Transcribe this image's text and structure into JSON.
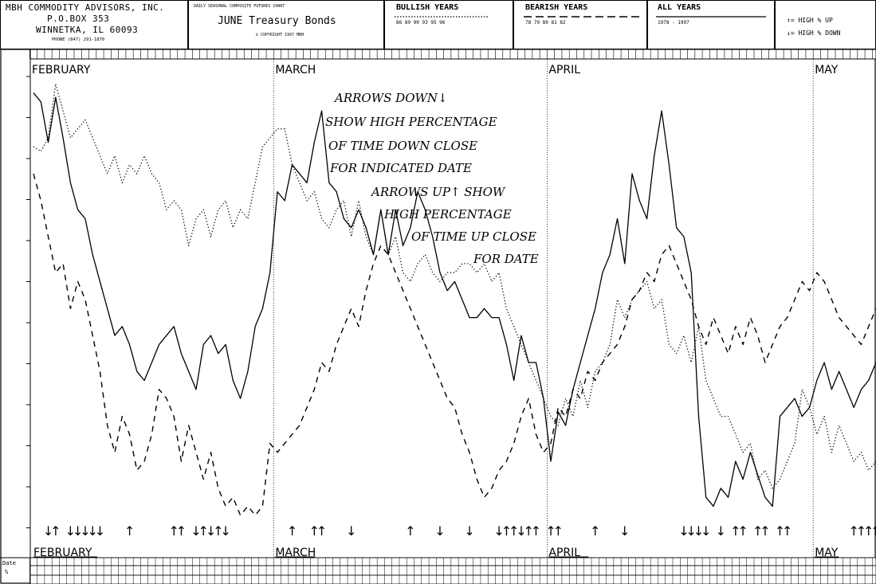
{
  "header": {
    "firm_name": "MBH COMMODITY ADVISORS, INC.",
    "address_line1": "P.O.BOX 353",
    "address_line2": "WINNETKA, IL 60093",
    "phone": "PHONE (847) 291-1870",
    "chart_kind": "DAILY SEASONAL COMPOSITE FUTURES CHART",
    "contract": "JUNE Treasury Bonds",
    "copyright": "© COPYRIGHT 1997 MBH",
    "legend_bullish": {
      "title": "BULLISH YEARS",
      "years": "86 89 90 93 95 96"
    },
    "legend_bearish": {
      "title": "BEARISH YEARS",
      "years": "78 79 80 81 82"
    },
    "legend_all": {
      "title": "ALL YEARS",
      "years": "1978 - 1997"
    },
    "legend_arrows": {
      "up": "↑= HIGH % UP",
      "down": "↓= HIGH % DOWN"
    }
  },
  "annotation": [
    "ARROWS DOWN↓",
    "SHOW HIGH PERCENTAGE",
    "OF TIME DOWN CLOSE",
    "FOR INDICATED DATE",
    "ARROWS UP↑ SHOW",
    "HIGH PERCENTAGE",
    "OF TIME UP CLOSE",
    "FOR DATE"
  ],
  "footer": {
    "date_label": "Date",
    "pct_label": "%"
  },
  "chart_data": {
    "type": "line",
    "title": "JUNE Treasury Bonds",
    "months": [
      "FEBRUARY",
      "MARCH",
      "APRIL",
      "MAY"
    ],
    "month_start_index": [
      0,
      33,
      70,
      106
    ],
    "grid": false,
    "series": [
      {
        "name": "ALL YEARS",
        "style": "solid",
        "values": [
          96,
          94,
          85,
          95,
          86,
          76,
          70,
          68,
          60,
          54,
          48,
          42,
          44,
          40,
          34,
          32,
          36,
          40,
          42,
          44,
          38,
          34,
          30,
          40,
          42,
          38,
          40,
          32,
          28,
          34,
          44,
          48,
          56,
          74,
          72,
          80,
          78,
          76,
          85,
          92,
          76,
          74,
          68,
          66,
          70,
          66,
          60,
          70,
          60,
          70,
          62,
          66,
          74,
          70,
          64,
          56,
          52,
          54,
          50,
          46,
          46,
          48,
          46,
          46,
          40,
          32,
          42,
          36,
          36,
          28,
          14,
          25,
          22,
          30,
          36,
          42,
          48,
          56,
          60,
          68,
          58,
          78,
          72,
          68,
          82,
          92,
          80,
          66,
          64,
          56,
          24,
          6,
          4,
          8,
          6,
          14,
          10,
          16,
          11,
          6,
          4,
          24,
          26,
          28,
          24,
          26,
          32,
          36,
          30,
          34,
          30,
          26,
          30,
          32,
          36
        ]
      },
      {
        "name": "BULLISH YEARS",
        "style": "dotted",
        "values": [
          84,
          83,
          86,
          98,
          92,
          86,
          88,
          90,
          86,
          82,
          78,
          82,
          76,
          80,
          78,
          82,
          78,
          76,
          70,
          72,
          70,
          62,
          68,
          70,
          64,
          70,
          72,
          66,
          70,
          68,
          76,
          84,
          86,
          88,
          88,
          80,
          76,
          72,
          74,
          68,
          66,
          70,
          72,
          64,
          72,
          64,
          60,
          70,
          60,
          64,
          56,
          54,
          58,
          60,
          56,
          54,
          56,
          56,
          58,
          58,
          56,
          58,
          54,
          56,
          48,
          44,
          40,
          36,
          32,
          28,
          24,
          22,
          28,
          24,
          32,
          26,
          34,
          36,
          40,
          50,
          46,
          50,
          52,
          54,
          48,
          50,
          40,
          38,
          42,
          36,
          44,
          32,
          28,
          24,
          24,
          20,
          16,
          18,
          10,
          12,
          8,
          10,
          14,
          18,
          30,
          26,
          20,
          24,
          16,
          22,
          18,
          14,
          16,
          12,
          14
        ]
      },
      {
        "name": "BEARISH YEARS",
        "style": "dashed",
        "values": [
          78,
          72,
          64,
          56,
          58,
          48,
          54,
          50,
          42,
          34,
          22,
          16,
          24,
          20,
          12,
          14,
          20,
          30,
          28,
          24,
          14,
          22,
          16,
          10,
          16,
          8,
          4,
          6,
          2,
          4,
          2,
          4,
          18,
          16,
          18,
          20,
          22,
          26,
          30,
          36,
          34,
          40,
          44,
          48,
          44,
          52,
          58,
          62,
          60,
          56,
          52,
          48,
          44,
          40,
          36,
          32,
          28,
          26,
          20,
          16,
          10,
          6,
          8,
          12,
          14,
          18,
          24,
          28,
          20,
          16,
          18,
          26,
          24,
          30,
          28,
          34,
          32,
          36,
          38,
          40,
          44,
          50,
          52,
          56,
          54,
          60,
          62,
          58,
          54,
          50,
          44,
          40,
          46,
          42,
          38,
          44,
          40,
          46,
          42,
          36,
          40,
          44,
          46,
          50,
          54,
          52,
          56,
          54,
          50,
          46,
          44,
          42,
          40,
          44,
          48
        ]
      }
    ],
    "arrows": [
      {
        "i": 2,
        "d": "down"
      },
      {
        "i": 3,
        "d": "up"
      },
      {
        "i": 5,
        "d": "down"
      },
      {
        "i": 6,
        "d": "down"
      },
      {
        "i": 7,
        "d": "down"
      },
      {
        "i": 8,
        "d": "down"
      },
      {
        "i": 9,
        "d": "down"
      },
      {
        "i": 13,
        "d": "up"
      },
      {
        "i": 19,
        "d": "up"
      },
      {
        "i": 20,
        "d": "up"
      },
      {
        "i": 22,
        "d": "down"
      },
      {
        "i": 23,
        "d": "up"
      },
      {
        "i": 24,
        "d": "down"
      },
      {
        "i": 25,
        "d": "up"
      },
      {
        "i": 26,
        "d": "down"
      },
      {
        "i": 35,
        "d": "up"
      },
      {
        "i": 38,
        "d": "up"
      },
      {
        "i": 39,
        "d": "up"
      },
      {
        "i": 43,
        "d": "down"
      },
      {
        "i": 51,
        "d": "up"
      },
      {
        "i": 55,
        "d": "down"
      },
      {
        "i": 59,
        "d": "down"
      },
      {
        "i": 63,
        "d": "down"
      },
      {
        "i": 64,
        "d": "up"
      },
      {
        "i": 65,
        "d": "up"
      },
      {
        "i": 66,
        "d": "down"
      },
      {
        "i": 67,
        "d": "up"
      },
      {
        "i": 68,
        "d": "up"
      },
      {
        "i": 70,
        "d": "up"
      },
      {
        "i": 71,
        "d": "up"
      },
      {
        "i": 76,
        "d": "up"
      },
      {
        "i": 80,
        "d": "down"
      },
      {
        "i": 88,
        "d": "down"
      },
      {
        "i": 89,
        "d": "down"
      },
      {
        "i": 90,
        "d": "down"
      },
      {
        "i": 91,
        "d": "down"
      },
      {
        "i": 93,
        "d": "down"
      },
      {
        "i": 95,
        "d": "up"
      },
      {
        "i": 96,
        "d": "up"
      },
      {
        "i": 98,
        "d": "up"
      },
      {
        "i": 99,
        "d": "up"
      },
      {
        "i": 101,
        "d": "up"
      },
      {
        "i": 102,
        "d": "up"
      },
      {
        "i": 111,
        "d": "up"
      },
      {
        "i": 112,
        "d": "up"
      },
      {
        "i": 113,
        "d": "up"
      },
      {
        "i": 114,
        "d": "up"
      }
    ]
  }
}
